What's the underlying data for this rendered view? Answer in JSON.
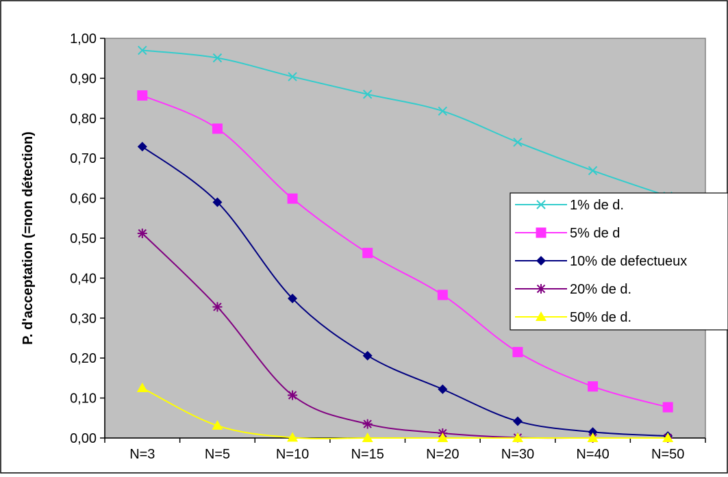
{
  "chart_data": {
    "type": "line",
    "title": "",
    "xlabel": "",
    "ylabel": "P. d'acceptation (=non détection)",
    "categories": [
      "N=3",
      "N=5",
      "N=10",
      "N=15",
      "N=20",
      "N=30",
      "N=40",
      "N=50"
    ],
    "ylim": [
      0,
      1
    ],
    "yticks": [
      "0,00",
      "0,10",
      "0,20",
      "0,30",
      "0,40",
      "0,50",
      "0,60",
      "0,70",
      "0,80",
      "0,90",
      "1,00"
    ],
    "grid": false,
    "plot_background": "#c0c0c0",
    "legend_position": "right",
    "series": [
      {
        "name": "1% de d.",
        "color": "#33cccc",
        "marker": "x",
        "values": [
          0.97,
          0.951,
          0.904,
          0.86,
          0.818,
          0.74,
          0.669,
          0.605
        ]
      },
      {
        "name": "5% de d",
        "color": "#ff33ff",
        "marker": "square",
        "values": [
          0.857,
          0.774,
          0.599,
          0.463,
          0.358,
          0.215,
          0.129,
          0.077
        ]
      },
      {
        "name": "10% de defectueux",
        "color": "#000080",
        "marker": "diamond",
        "values": [
          0.729,
          0.59,
          0.349,
          0.206,
          0.122,
          0.042,
          0.015,
          0.005
        ]
      },
      {
        "name": "20% de d.",
        "color": "#800080",
        "marker": "star",
        "values": [
          0.512,
          0.328,
          0.107,
          0.035,
          0.012,
          0.001,
          0.0,
          0.0
        ]
      },
      {
        "name": "50% de d.",
        "color": "#ffff00",
        "marker": "triangle",
        "values": [
          0.125,
          0.031,
          0.001,
          0.0,
          0.0,
          0.0,
          0.0,
          0.0
        ]
      }
    ]
  }
}
